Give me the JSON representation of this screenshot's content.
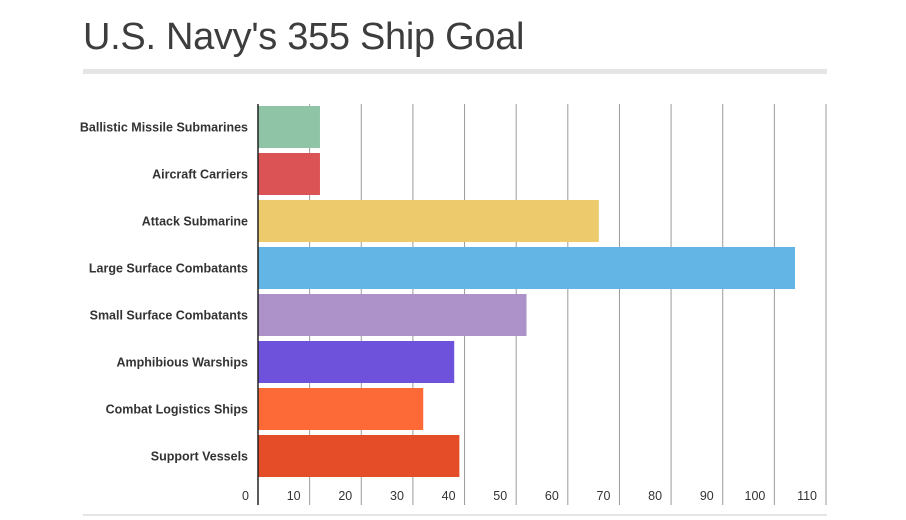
{
  "title": "U.S. Navy's 355 Ship Goal",
  "chart_data": {
    "type": "bar",
    "orientation": "horizontal",
    "title": "U.S. Navy's 355 Ship Goal",
    "xlabel": "",
    "ylabel": "",
    "xlim": [
      0,
      110
    ],
    "xticks": [
      0,
      10,
      20,
      30,
      40,
      50,
      60,
      70,
      80,
      90,
      100,
      110
    ],
    "grid": true,
    "legend": "none",
    "categories": [
      "Ballistic Missile Submarines",
      "Aircraft Carriers",
      "Attack Submarine",
      "Large Surface Combatants",
      "Small Surface Combatants",
      "Amphibious Warships",
      "Combat Logistics Ships",
      "Support Vessels"
    ],
    "values": [
      12,
      12,
      66,
      104,
      52,
      38,
      32,
      39
    ],
    "colors": [
      "#8fc4a7",
      "#dc5356",
      "#edca6b",
      "#62b5e5",
      "#ac92c9",
      "#6f52db",
      "#fd6937",
      "#e44d27"
    ]
  }
}
